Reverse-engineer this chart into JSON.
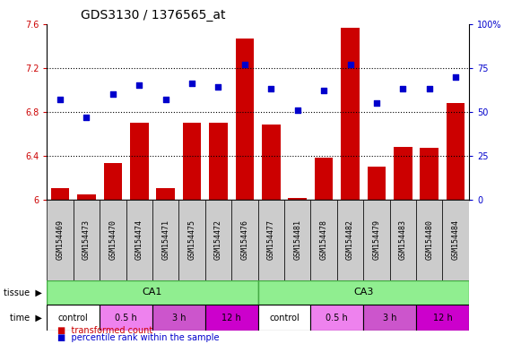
{
  "title": "GDS3130 / 1376565_at",
  "samples": [
    "GSM154469",
    "GSM154473",
    "GSM154470",
    "GSM154474",
    "GSM154471",
    "GSM154475",
    "GSM154472",
    "GSM154476",
    "GSM154477",
    "GSM154481",
    "GSM154478",
    "GSM154482",
    "GSM154479",
    "GSM154483",
    "GSM154480",
    "GSM154484"
  ],
  "bar_values": [
    6.1,
    6.05,
    6.33,
    6.7,
    6.1,
    6.7,
    6.7,
    7.47,
    6.68,
    6.01,
    6.38,
    7.57,
    6.3,
    6.48,
    6.47,
    6.88
  ],
  "dot_values": [
    57,
    47,
    60,
    65,
    57,
    66,
    64,
    77,
    63,
    51,
    62,
    77,
    55,
    63,
    63,
    70
  ],
  "bar_color": "#cc0000",
  "dot_color": "#0000cc",
  "ylim_left": [
    6.0,
    7.6
  ],
  "ylim_right": [
    0,
    100
  ],
  "yticks_left": [
    6.0,
    6.4,
    6.8,
    7.2,
    7.6
  ],
  "yticks_right": [
    0,
    25,
    50,
    75,
    100
  ],
  "ytick_labels_left": [
    "6",
    "6.4",
    "6.8",
    "7.2",
    "7.6"
  ],
  "ytick_labels_right": [
    "0",
    "25",
    "50",
    "75",
    "100%"
  ],
  "hlines": [
    6.4,
    6.8,
    7.2
  ],
  "tissue_labels": [
    {
      "label": "CA1",
      "start": 0,
      "end": 8
    },
    {
      "label": "CA3",
      "start": 8,
      "end": 16
    }
  ],
  "time_labels": [
    {
      "label": "control",
      "start": 0,
      "end": 2,
      "color": "#ffffff"
    },
    {
      "label": "0.5 h",
      "start": 2,
      "end": 4,
      "color": "#ee82ee"
    },
    {
      "label": "3 h",
      "start": 4,
      "end": 6,
      "color": "#cc55cc"
    },
    {
      "label": "12 h",
      "start": 6,
      "end": 8,
      "color": "#cc00cc"
    },
    {
      "label": "control",
      "start": 8,
      "end": 10,
      "color": "#ffffff"
    },
    {
      "label": "0.5 h",
      "start": 10,
      "end": 12,
      "color": "#ee82ee"
    },
    {
      "label": "3 h",
      "start": 12,
      "end": 14,
      "color": "#cc55cc"
    },
    {
      "label": "12 h",
      "start": 14,
      "end": 16,
      "color": "#cc00cc"
    }
  ],
  "tissue_color": "#90ee90",
  "tissue_border_color": "#44aa44",
  "sample_box_color": "#cccccc",
  "label_fontsize": 7,
  "tick_fontsize": 7,
  "title_fontsize": 10,
  "legend_fontsize": 7
}
